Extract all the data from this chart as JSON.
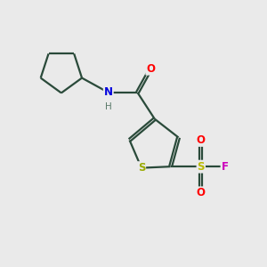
{
  "bg_color": "#eaeaea",
  "bond_color": "#2a4a3a",
  "line_width": 1.6,
  "atom_colors": {
    "S_thiophene": "#9aaa00",
    "S_sulfonyl": "#bbbb00",
    "O": "#ff0000",
    "N": "#0000dd",
    "F": "#cc00bb",
    "C": "#2a4a3a",
    "H": "#5a7a6a"
  },
  "figsize": [
    3.0,
    3.0
  ],
  "dpi": 100
}
